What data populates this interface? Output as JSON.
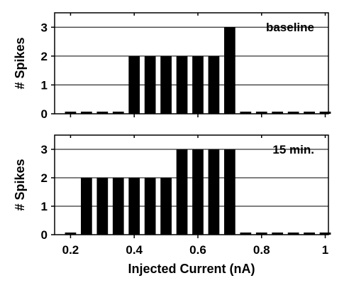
{
  "chart_data": {
    "type": "bar",
    "xlabel": "Injected Current (nA)",
    "xlim": [
      0.15,
      1.01
    ],
    "x_ticks": [
      0.2,
      0.4,
      0.6,
      0.8,
      1
    ],
    "x_tick_labels": [
      "0.2",
      "0.4",
      "0.6",
      "0.8",
      "1"
    ],
    "bar_width": 0.035,
    "grid": "horizontal",
    "panels": [
      {
        "label": "baseline",
        "ylabel": "# Spikes",
        "ylim": [
          0,
          3.5
        ],
        "y_ticks": [
          0,
          1,
          2,
          3
        ],
        "y_tick_labels": [
          "0",
          "1",
          "2",
          "3"
        ],
        "x": [
          0.2,
          0.25,
          0.3,
          0.35,
          0.4,
          0.45,
          0.5,
          0.55,
          0.6,
          0.65,
          0.7,
          0.75,
          0.8,
          0.85,
          0.9,
          0.95,
          1.0
        ],
        "values": [
          0,
          0,
          0,
          0,
          2,
          2,
          2,
          2,
          2,
          2,
          3,
          0,
          0,
          0,
          0,
          0,
          0
        ]
      },
      {
        "label": "15 min.",
        "ylabel": "# Spikes",
        "ylim": [
          0,
          3.5
        ],
        "y_ticks": [
          0,
          1,
          2,
          3
        ],
        "y_tick_labels": [
          "0",
          "1",
          "2",
          "3"
        ],
        "x": [
          0.2,
          0.25,
          0.3,
          0.35,
          0.4,
          0.45,
          0.5,
          0.55,
          0.6,
          0.65,
          0.7,
          0.75,
          0.8,
          0.85,
          0.9,
          0.95,
          1.0
        ],
        "values": [
          0,
          2,
          2,
          2,
          2,
          2,
          2,
          3,
          3,
          3,
          3,
          0,
          0,
          0,
          0,
          0,
          0
        ]
      }
    ]
  }
}
